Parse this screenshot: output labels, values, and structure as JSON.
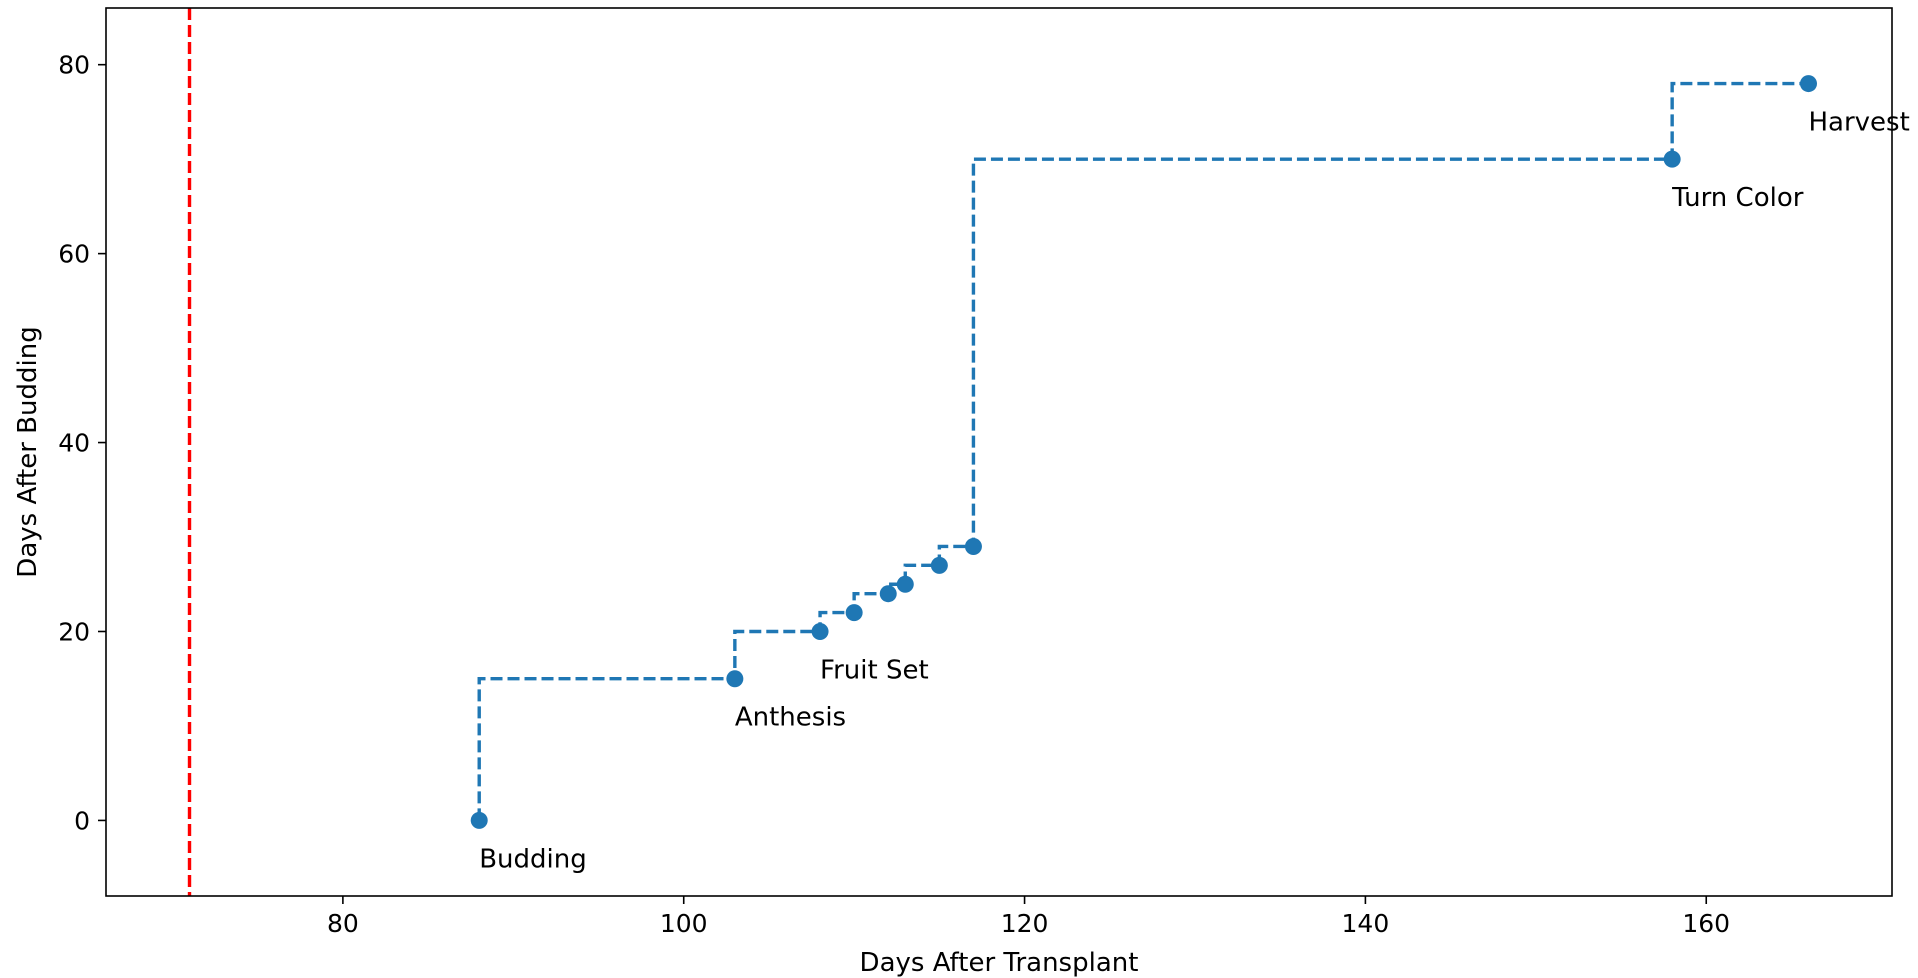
{
  "chart_data": {
    "type": "line",
    "title": "",
    "xlabel": "Days After Transplant",
    "ylabel": "Days After Budding",
    "xlim": [
      66.1,
      170.9
    ],
    "ylim": [
      -8,
      86
    ],
    "xticks": [
      80,
      100,
      120,
      140,
      160
    ],
    "yticks": [
      0,
      20,
      40,
      60,
      80
    ],
    "grid": false,
    "legend": "none",
    "step_where": "pre",
    "series": [
      {
        "color": "#1f77b4",
        "linestyle": "dashed",
        "marker": "circle",
        "points": [
          {
            "x": 88,
            "y": 0,
            "label": "Budding"
          },
          {
            "x": 103,
            "y": 15,
            "label": "Anthesis"
          },
          {
            "x": 108,
            "y": 20,
            "label": "Fruit Set"
          },
          {
            "x": 110,
            "y": 22,
            "label": ""
          },
          {
            "x": 112,
            "y": 24,
            "label": ""
          },
          {
            "x": 113,
            "y": 25,
            "label": ""
          },
          {
            "x": 115,
            "y": 27,
            "label": ""
          },
          {
            "x": 117,
            "y": 29,
            "label": ""
          },
          {
            "x": 158,
            "y": 70,
            "label": "Turn Color"
          },
          {
            "x": 166,
            "y": 78,
            "label": "Harvest"
          }
        ]
      }
    ],
    "vertical_lines": [
      {
        "x": 71,
        "color": "#ff0000",
        "linestyle": "dashed"
      }
    ]
  }
}
